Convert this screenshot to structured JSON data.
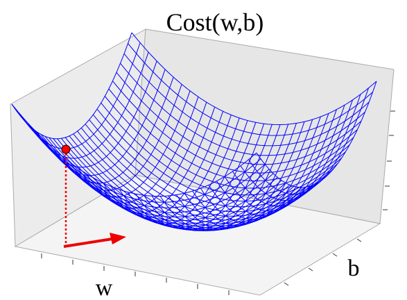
{
  "chart_data": {
    "type": "surface",
    "title": "Cost(w,b)",
    "xlabel": "w",
    "ylabel": "b",
    "color": "#0000ff",
    "marker_color": "#ff0000"
  }
}
